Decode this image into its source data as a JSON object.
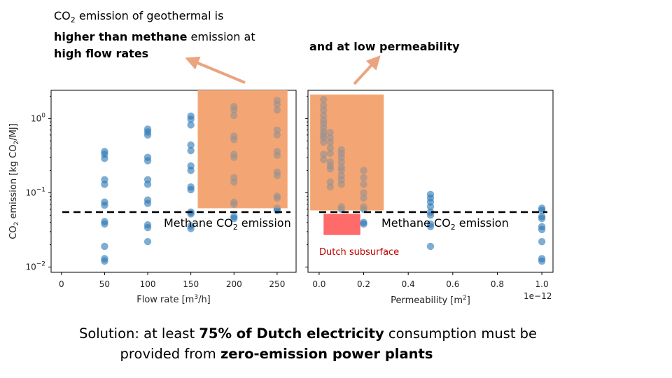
{
  "captions": {
    "left": {
      "line1_prefix": "CO",
      "line1_sub": "2",
      "line1_rest": " emission of geothermal is",
      "line2_bold": "higher than methane",
      "line2_rest": " emission at",
      "line3": "high flow rates"
    },
    "right": "and at low permeability"
  },
  "solution": {
    "p1": "Solution: at least ",
    "b1": "75% of Dutch electricity",
    "p2": " consumption must be",
    "p3": "provided from ",
    "b2": "zero-emission power plants"
  },
  "colors": {
    "point": "#2a77b4",
    "highlight": "#f3a674",
    "dutch": "#ff6a6a",
    "methane_line": "#000000",
    "arrow": "#eaa47f",
    "dutch_label": "#c00000"
  },
  "chart_data": [
    {
      "type": "scatter",
      "title": "",
      "xlabel": "Flow rate [m3/h]",
      "ylabel": "CO2 emission [kg CO2/MJ]",
      "xscale": "linear",
      "yscale": "log",
      "xlim": [
        -12,
        272
      ],
      "ylim": [
        0.0085,
        2.4
      ],
      "xticks": [
        0,
        50,
        100,
        150,
        200,
        250
      ],
      "yticks": [
        {
          "value": 0.01,
          "base": "10",
          "exp": "−2"
        },
        {
          "value": 0.1,
          "base": "10",
          "exp": "−1"
        },
        {
          "value": 1,
          "base": "10",
          "exp": "0"
        }
      ],
      "methane_line": {
        "value": 0.055,
        "label": "Methane CO2 emission",
        "label_prefix": "Methane CO",
        "label_sub": "2",
        "label_rest": " emission"
      },
      "highlight_region": {
        "x": [
          158,
          262
        ],
        "y": [
          0.062,
          2.4
        ]
      },
      "points": [
        {
          "x": 50,
          "y": [
            0.012,
            0.013,
            0.019,
            0.038,
            0.041,
            0.068,
            0.075,
            0.13,
            0.15,
            0.29,
            0.33,
            0.36
          ]
        },
        {
          "x": 100,
          "y": [
            0.022,
            0.034,
            0.037,
            0.072,
            0.08,
            0.13,
            0.15,
            0.27,
            0.3,
            0.6,
            0.66,
            0.72
          ]
        },
        {
          "x": 150,
          "y": [
            0.033,
            0.036,
            0.052,
            0.055,
            0.11,
            0.12,
            0.2,
            0.23,
            0.37,
            0.44,
            0.82,
            0.98,
            1.08
          ]
        },
        {
          "x": 200,
          "y": [
            0.045,
            0.048,
            0.07,
            0.075,
            0.14,
            0.16,
            0.3,
            0.33,
            0.52,
            0.58,
            1.1,
            1.3,
            1.45
          ]
        },
        {
          "x": 250,
          "y": [
            0.058,
            0.062,
            0.085,
            0.09,
            0.17,
            0.19,
            0.32,
            0.36,
            0.6,
            0.7,
            1.3,
            1.55,
            1.75
          ]
        }
      ]
    },
    {
      "type": "scatter",
      "title": "",
      "xlabel": "Permeability [m2]",
      "x_offset_label": "1e−12",
      "xscale": "linear",
      "yscale": "log",
      "xlim": [
        -0.05,
        1.05
      ],
      "ylim": [
        0.0085,
        2.4
      ],
      "xticks": [
        0.0,
        0.2,
        0.4,
        0.6,
        0.8,
        1.0
      ],
      "xtick_labels": [
        "0.0",
        "0.2",
        "0.4",
        "0.6",
        "0.8",
        "1.0"
      ],
      "methane_line": {
        "value": 0.055,
        "label": "Methane CO2 emission",
        "label_prefix": "Methane CO",
        "label_sub": "2",
        "label_rest": " emission"
      },
      "highlight_region": {
        "x": [
          -0.04,
          0.29
        ],
        "y": [
          0.058,
          2.1
        ]
      },
      "dutch_region": {
        "x": [
          0.02,
          0.185
        ],
        "y": [
          0.027,
          0.052
        ],
        "label": "Dutch subsurface"
      },
      "points": [
        {
          "x": 0.02,
          "y": [
            0.28,
            0.33,
            0.48,
            0.55,
            0.6,
            0.66,
            0.75,
            0.85,
            0.95,
            1.1,
            1.3,
            1.5,
            1.8
          ]
        },
        {
          "x": 0.05,
          "y": [
            0.26,
            0.34,
            0.4,
            0.48,
            0.55,
            0.65
          ]
        },
        {
          "x": 0.05,
          "y": [
            0.12,
            0.14,
            0.21,
            0.23
          ]
        },
        {
          "x": 0.1,
          "y": [
            0.06,
            0.065,
            0.13,
            0.15,
            0.17,
            0.2,
            0.22,
            0.26,
            0.3,
            0.34,
            0.38
          ]
        },
        {
          "x": 0.2,
          "y": [
            0.038,
            0.04,
            0.06,
            0.065,
            0.085,
            0.1,
            0.13,
            0.16,
            0.2
          ]
        },
        {
          "x": 0.5,
          "y": [
            0.019,
            0.035,
            0.038,
            0.05,
            0.055,
            0.065,
            0.075,
            0.085,
            0.095
          ]
        },
        {
          "x": 1.0,
          "y": [
            0.012,
            0.013,
            0.022,
            0.032,
            0.035,
            0.045,
            0.048,
            0.058,
            0.062
          ]
        }
      ]
    }
  ]
}
